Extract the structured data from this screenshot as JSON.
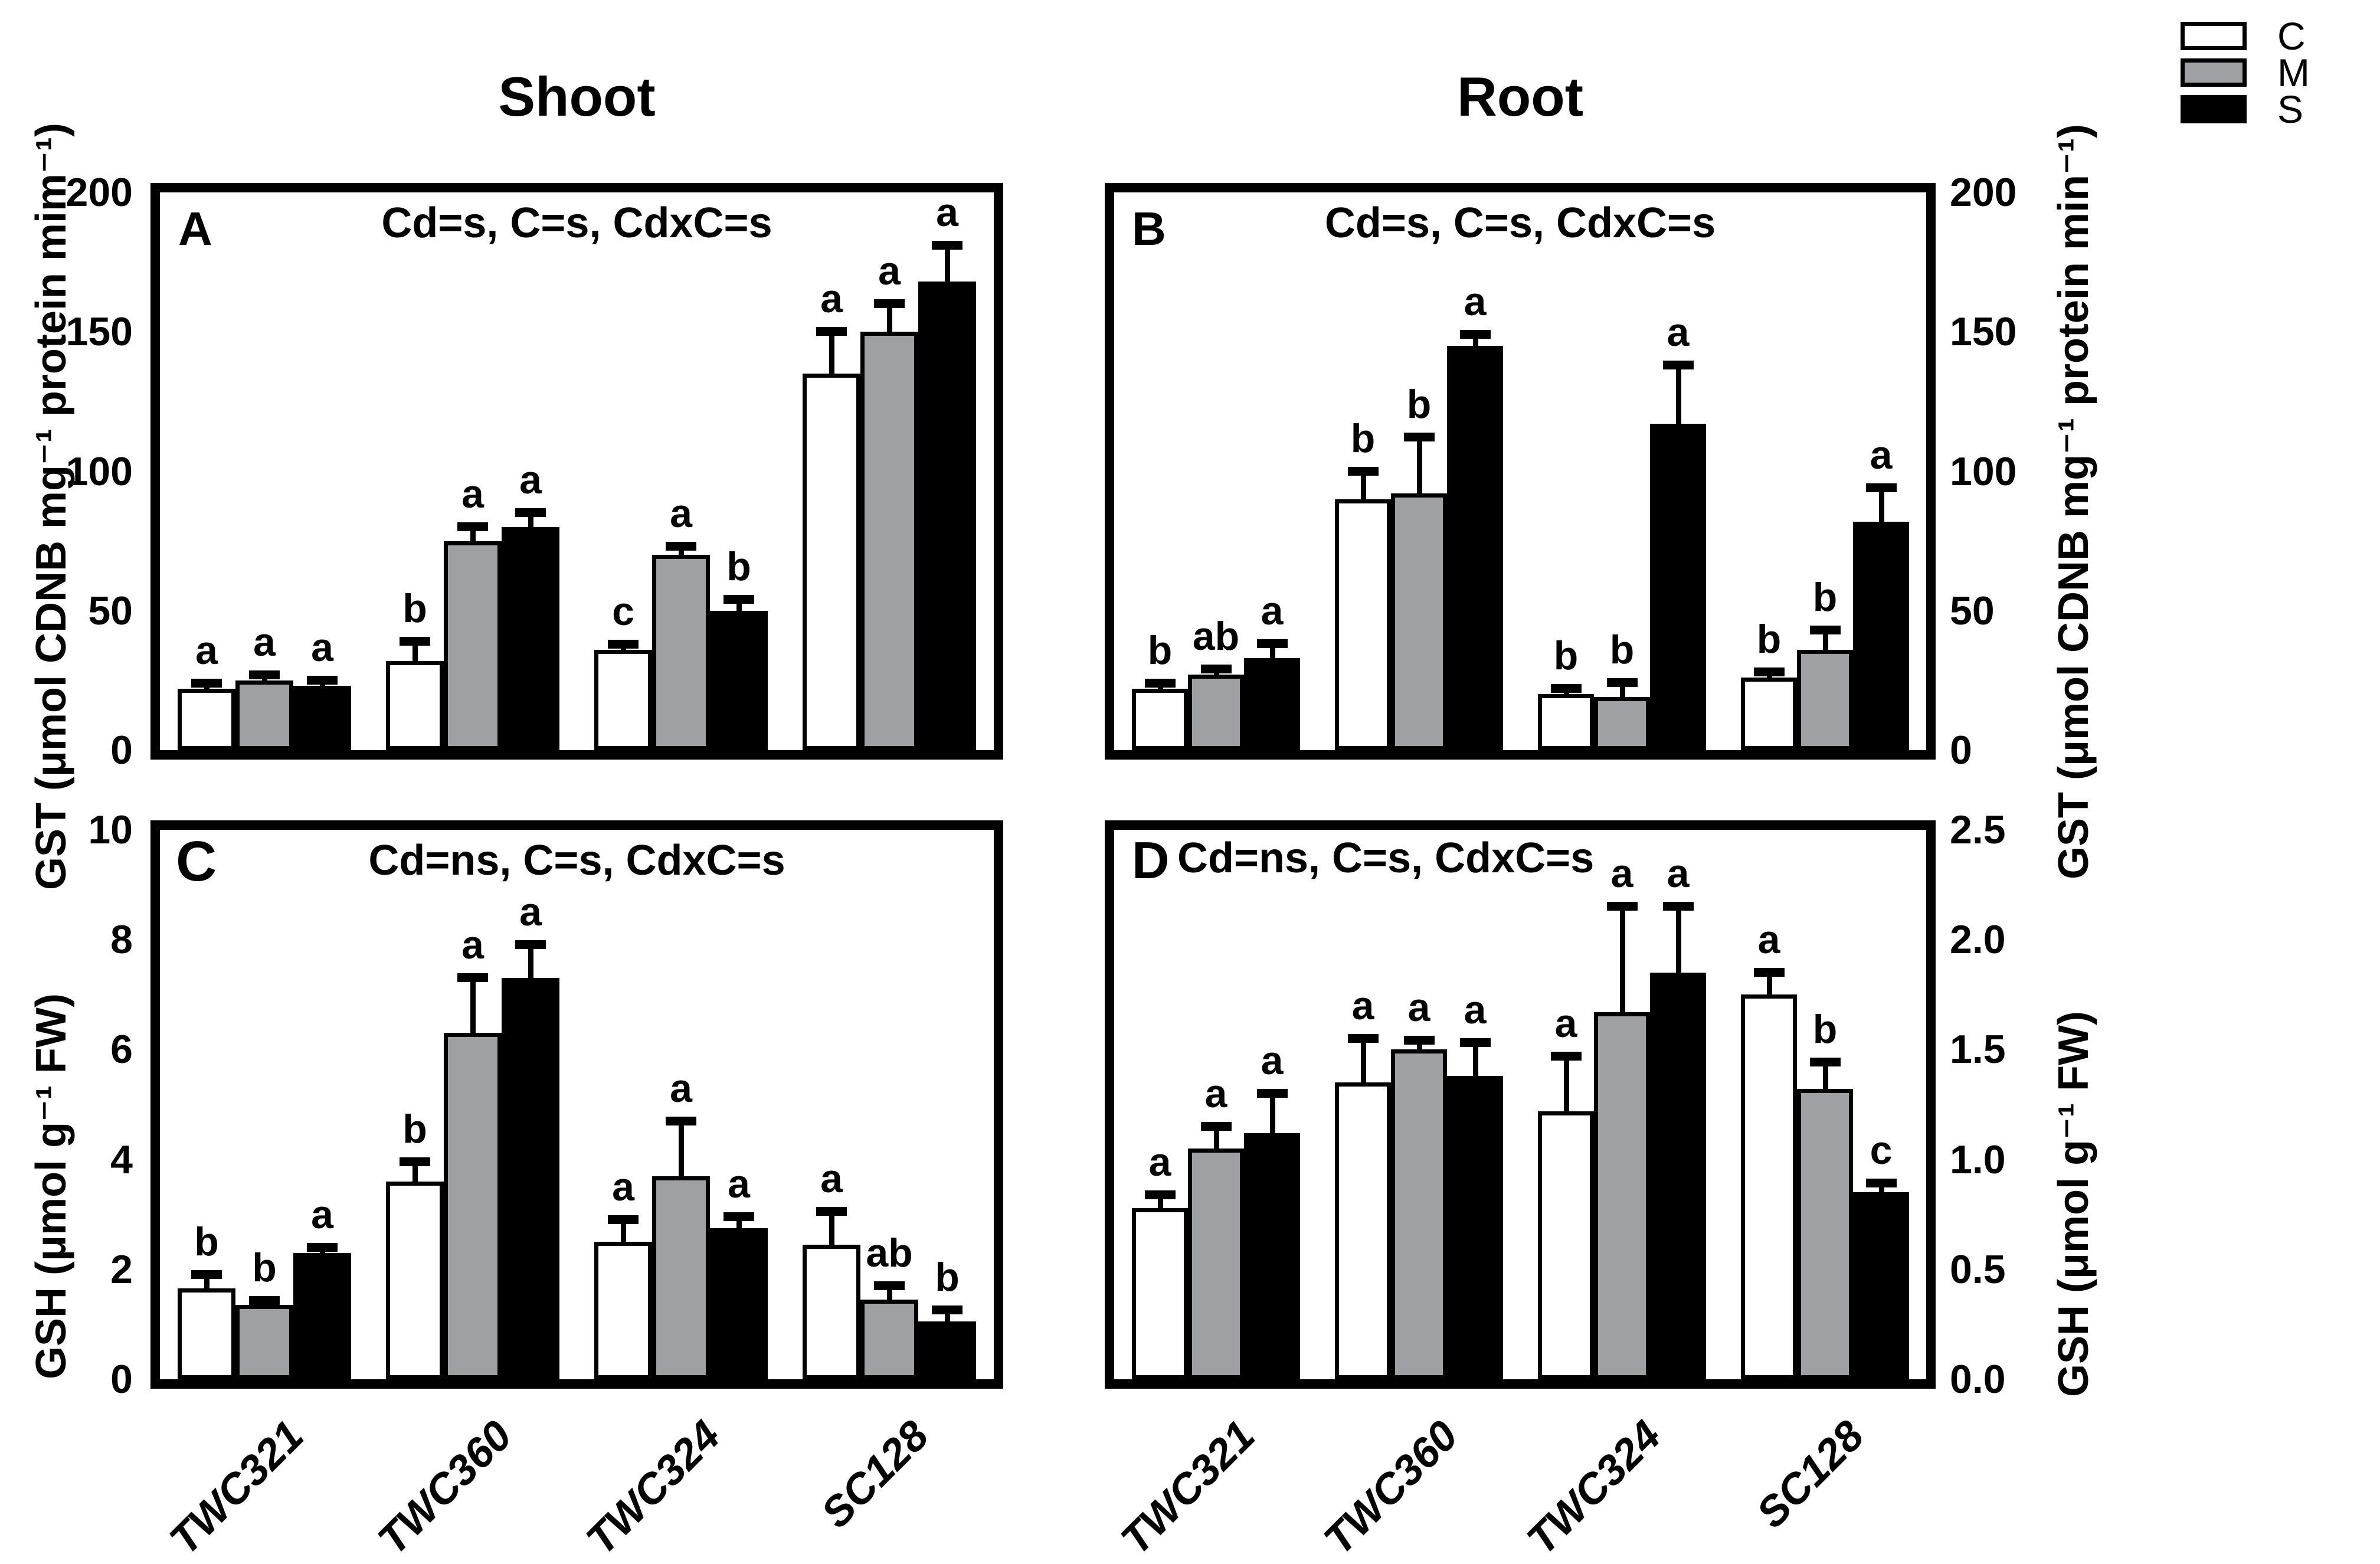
{
  "figure": {
    "columns": [
      {
        "title": "Shoot"
      },
      {
        "title": "Root"
      }
    ],
    "legend": [
      {
        "label": "C",
        "color": "#ffffff"
      },
      {
        "label": "M",
        "color": "#9fa0a4"
      },
      {
        "label": "S",
        "color": "#000000"
      }
    ],
    "text_color": "#000000"
  },
  "chart_data": [
    {
      "panel_letter": "A",
      "location": "Shoot",
      "type": "bar",
      "stats": "Cd=s, C=s, CdxC=s",
      "ylabel": "GST (μmol CDNB mg⁻¹ protein mim⁻¹)",
      "yaxis_side": "left",
      "ylim": [
        0,
        200
      ],
      "yticks": [
        "0",
        "50",
        "100",
        "150",
        "200"
      ],
      "categories": [
        "TWC321",
        "TWC360",
        "TWC324",
        "SC128"
      ],
      "show_xlabels": false,
      "series": [
        {
          "name": "C",
          "fill": "#ffffff",
          "values": [
            22,
            32,
            36,
            135
          ],
          "errors": [
            2,
            7,
            2,
            15
          ],
          "sig_letters": [
            "a",
            "b",
            "c",
            "a"
          ]
        },
        {
          "name": "M",
          "fill": "#9fa0a4",
          "values": [
            25,
            75,
            70,
            150
          ],
          "errors": [
            2,
            5,
            3,
            10
          ],
          "sig_letters": [
            "a",
            "a",
            "a",
            "a"
          ]
        },
        {
          "name": "S",
          "fill": "#000000",
          "values": [
            23,
            80,
            50,
            168
          ],
          "errors": [
            2,
            5,
            4,
            13
          ],
          "sig_letters": [
            "a",
            "a",
            "b",
            "a"
          ]
        }
      ]
    },
    {
      "panel_letter": "B",
      "location": "Root",
      "type": "bar",
      "stats": "Cd=s, C=s, CdxC=s",
      "ylabel": "GST (μmol CDNB mg⁻¹ protein min⁻¹)",
      "yaxis_side": "right",
      "ylim": [
        0,
        200
      ],
      "yticks": [
        "0",
        "50",
        "100",
        "150",
        "200"
      ],
      "categories": [
        "TWC321",
        "TWC360",
        "TWC324",
        "SC128"
      ],
      "show_xlabels": false,
      "series": [
        {
          "name": "C",
          "fill": "#ffffff",
          "values": [
            22,
            90,
            20,
            26
          ],
          "errors": [
            2,
            10,
            2,
            2
          ],
          "sig_letters": [
            "b",
            "b",
            "b",
            "b"
          ]
        },
        {
          "name": "M",
          "fill": "#9fa0a4",
          "values": [
            27,
            92,
            19,
            36
          ],
          "errors": [
            2,
            20,
            5,
            7
          ],
          "sig_letters": [
            "ab",
            "b",
            "b",
            "b"
          ]
        },
        {
          "name": "S",
          "fill": "#000000",
          "values": [
            33,
            145,
            117,
            82
          ],
          "errors": [
            5,
            4,
            21,
            12
          ],
          "sig_letters": [
            "a",
            "a",
            "a",
            "a"
          ]
        }
      ]
    },
    {
      "panel_letter": "C",
      "location": "Shoot",
      "type": "bar",
      "stats": "Cd=ns, C=s, CdxC=s",
      "ylabel": "GSH (μmol g⁻¹ FW)",
      "yaxis_side": "left",
      "ylim": [
        0,
        10
      ],
      "yticks": [
        "0",
        "2",
        "4",
        "6",
        "8",
        "10"
      ],
      "categories": [
        "TWC321",
        "TWC360",
        "TWC324",
        "SC128"
      ],
      "show_xlabels": true,
      "series": [
        {
          "name": "C",
          "fill": "#ffffff",
          "values": [
            1.65,
            3.6,
            2.5,
            2.45
          ],
          "errors": [
            0.25,
            0.35,
            0.4,
            0.6
          ],
          "sig_letters": [
            "b",
            "b",
            "a",
            "a"
          ]
        },
        {
          "name": "M",
          "fill": "#9fa0a4",
          "values": [
            1.35,
            6.3,
            3.7,
            1.45
          ],
          "errors": [
            0.08,
            1.0,
            1.0,
            0.25
          ],
          "sig_letters": [
            "b",
            "a",
            "a",
            "ab"
          ]
        },
        {
          "name": "S",
          "fill": "#000000",
          "values": [
            2.3,
            7.3,
            2.75,
            1.05
          ],
          "errors": [
            0.1,
            0.6,
            0.2,
            0.2
          ],
          "sig_letters": [
            "a",
            "a",
            "a",
            "b"
          ]
        }
      ]
    },
    {
      "panel_letter": "D",
      "location": "Root",
      "type": "bar",
      "stats": "Cd=ns, C=s, CdxC=s",
      "ylabel": "GSH (μmol g⁻¹ FW)",
      "yaxis_side": "right",
      "ylim": [
        0,
        2.5
      ],
      "yticks": [
        "0.0",
        "0.5",
        "1.0",
        "1.5",
        "2.0",
        "2.5"
      ],
      "categories": [
        "TWC321",
        "TWC360",
        "TWC324",
        "SC128"
      ],
      "show_xlabels": true,
      "series": [
        {
          "name": "C",
          "fill": "#ffffff",
          "values": [
            0.78,
            1.35,
            1.22,
            1.75
          ],
          "errors": [
            0.06,
            0.2,
            0.25,
            0.1
          ],
          "sig_letters": [
            "a",
            "a",
            "a",
            "a"
          ]
        },
        {
          "name": "M",
          "fill": "#9fa0a4",
          "values": [
            1.05,
            1.5,
            1.67,
            1.32
          ],
          "errors": [
            0.1,
            0.04,
            0.48,
            0.12
          ],
          "sig_letters": [
            "a",
            "a",
            "a",
            "b"
          ]
        },
        {
          "name": "S",
          "fill": "#000000",
          "values": [
            1.12,
            1.38,
            1.85,
            0.85
          ],
          "errors": [
            0.18,
            0.15,
            0.3,
            0.04
          ],
          "sig_letters": [
            "a",
            "a",
            "a",
            "c"
          ]
        }
      ]
    }
  ]
}
